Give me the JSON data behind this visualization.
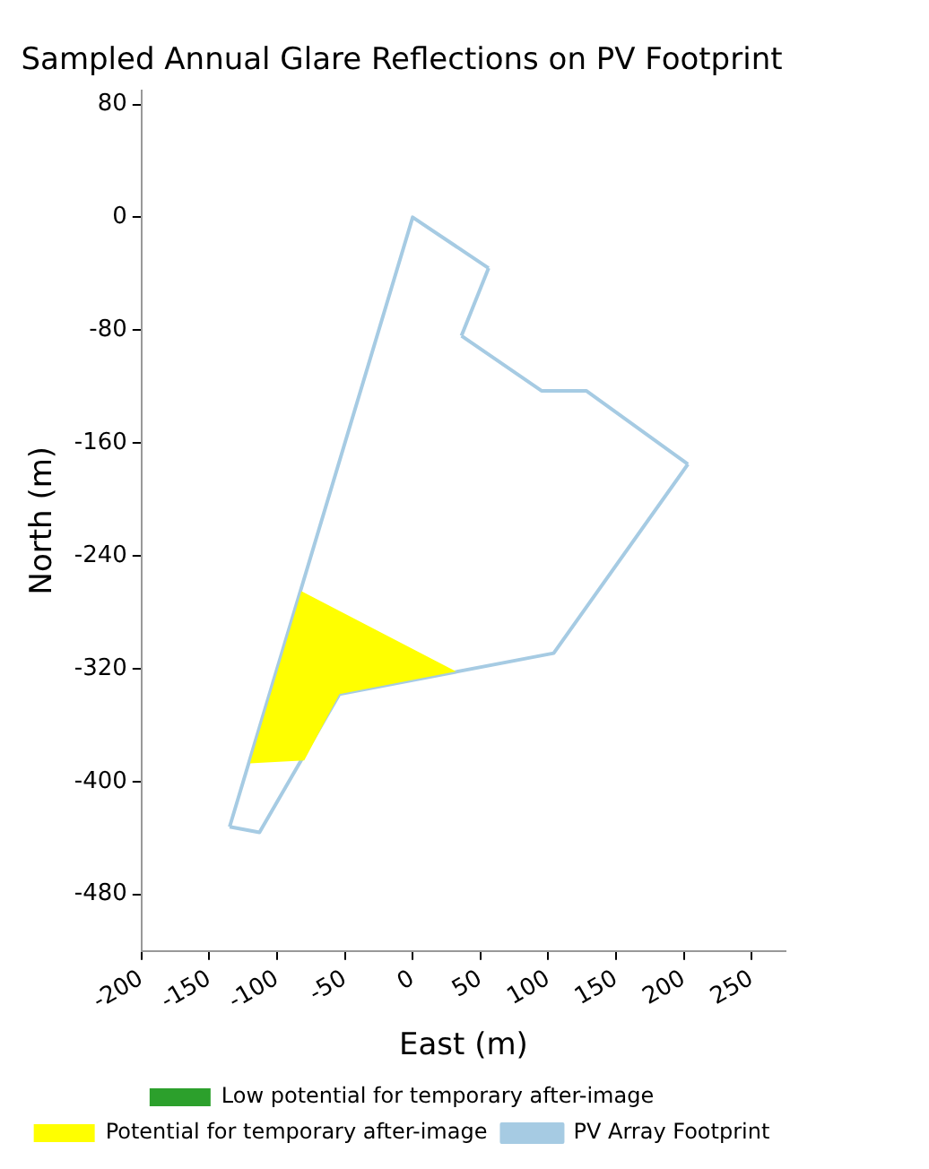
{
  "chart_data": {
    "type": "line",
    "title": "Sampled Annual Glare Reflections on PV Footprint",
    "xlabel": "East (m)",
    "ylabel": "North (m)",
    "xlim": [
      -200,
      275
    ],
    "xticks": [
      -200,
      -150,
      -100,
      -50,
      0,
      50,
      100,
      150,
      200,
      250
    ],
    "ylim": [
      -520,
      90
    ],
    "yticks": [
      80,
      0,
      -80,
      -160,
      -240,
      -320,
      -400,
      -480
    ],
    "grid": false,
    "legend": "bottom",
    "marker": "none",
    "line_style": "solid",
    "series": [
      {
        "name": "Low potential for temporary after-image",
        "color": "#2ca02c",
        "type": "area"
      },
      {
        "name": "Potential for temporary after-image",
        "color": "#ffff00",
        "type": "area",
        "x": [
          -82,
          32,
          -54,
          -80,
          -120,
          -82
        ],
        "values": [
          -265,
          -322,
          -338,
          -385,
          -387,
          -265
        ]
      },
      {
        "name": "PV Array Footprint",
        "color": "#a6cbe3",
        "type": "line",
        "x": [
          -135,
          0,
          56
        ],
        "values": [
          -432,
          0,
          -36
        ]
      },
      {
        "color": "#a6cbe3",
        "type": "line",
        "x": [
          56,
          36
        ],
        "values": [
          -36,
          -84
        ]
      },
      {
        "color": "#a6cbe3",
        "type": "line",
        "x": [
          36,
          95,
          128,
          203
        ],
        "values": [
          -84,
          -123,
          -123,
          -175
        ]
      },
      {
        "color": "#a6cbe3",
        "type": "line",
        "x": [
          203,
          104,
          -54,
          -113,
          -135
        ],
        "values": [
          -175,
          -309,
          -338,
          -436,
          -432
        ]
      }
    ]
  }
}
